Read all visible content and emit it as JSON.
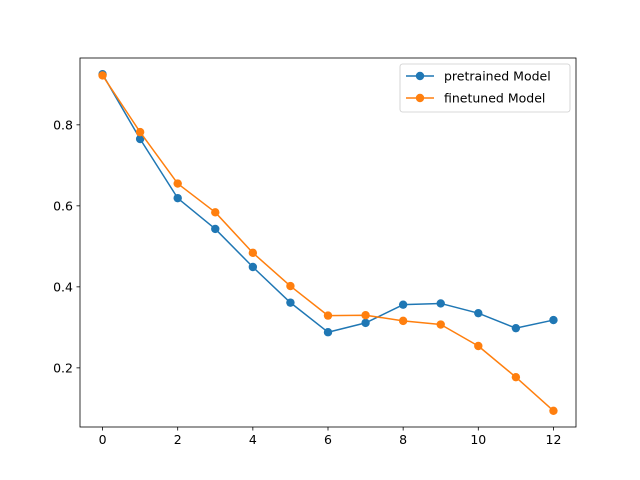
{
  "chart_data": {
    "type": "line",
    "title": "",
    "xlabel": "",
    "ylabel": "",
    "xlim": [
      -0.6,
      12.6
    ],
    "ylim": [
      0.054,
      0.965
    ],
    "xticks": [
      0,
      2,
      4,
      6,
      8,
      10,
      12
    ],
    "yticks": [
      0.2,
      0.4,
      0.6,
      0.8
    ],
    "ytick_labels": [
      "0.2",
      "0.4",
      "0.6",
      "0.8"
    ],
    "grid": false,
    "legend_position": "top-right",
    "x": [
      0,
      1,
      2,
      3,
      4,
      5,
      6,
      7,
      8,
      9,
      10,
      11,
      12
    ],
    "series": [
      {
        "name": "pretrained Model",
        "color": "#1f77b4",
        "values": [
          0.925,
          0.765,
          0.619,
          0.543,
          0.449,
          0.361,
          0.288,
          0.311,
          0.356,
          0.359,
          0.335,
          0.298,
          0.318
        ]
      },
      {
        "name": "finetuned Model",
        "color": "#ff7f0e",
        "values": [
          0.922,
          0.782,
          0.655,
          0.584,
          0.484,
          0.402,
          0.329,
          0.33,
          0.316,
          0.307,
          0.254,
          0.177,
          0.094
        ]
      }
    ]
  }
}
